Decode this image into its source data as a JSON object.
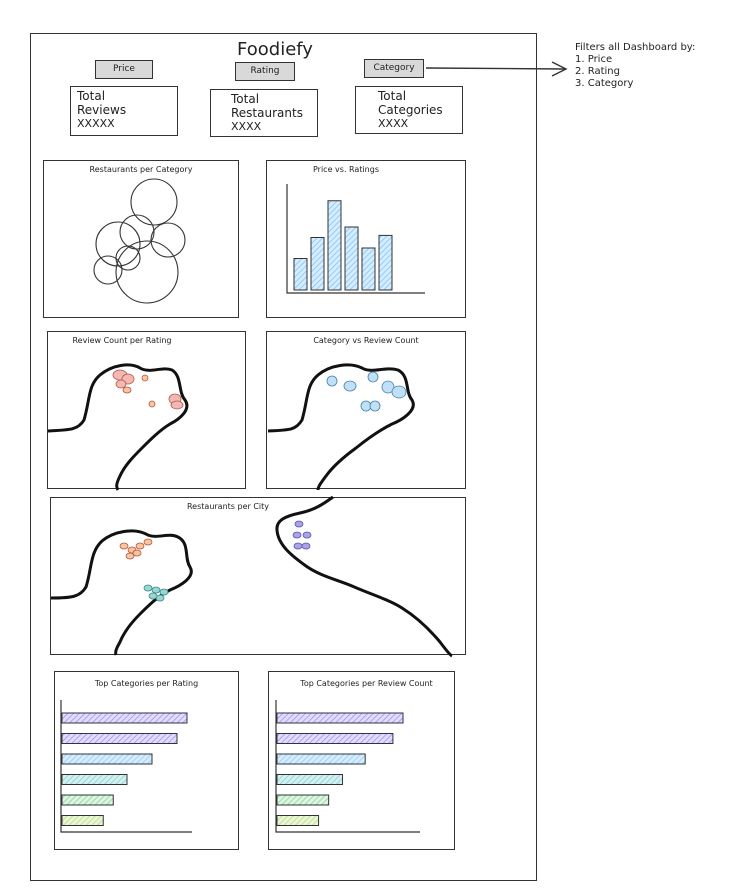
{
  "app_title": "Foodiefy",
  "filters": {
    "price": "Price",
    "rating": "Rating",
    "category": "Category"
  },
  "kpis": {
    "reviews": {
      "line1": "Total",
      "line2": "Reviews",
      "value": "XXXXX"
    },
    "restaurants": {
      "line1": "Total",
      "line2": "Restaurants",
      "value": "XXXX"
    },
    "categories": {
      "line1": "Total",
      "line2": "Categories",
      "value": "XXXX"
    }
  },
  "note": {
    "heading": "Filters all Dashboard by:",
    "items": [
      "1. Price",
      "2. Rating",
      "3. Category"
    ]
  },
  "panels": {
    "restaurants_per_category": "Restaurants per Category",
    "price_vs_ratings": "Price vs. Ratings",
    "review_count_per_rating": "Review Count per Rating",
    "category_vs_review_count": "Category vs Review Count",
    "restaurants_per_city": "Restaurants per City",
    "top_categories_rating": "Top Categories per Rating",
    "top_categories_review": "Top Categories per Review Count"
  },
  "colors": {
    "bar_blue": "#a5d8ff",
    "bar_purple": "#b7a9f5",
    "bar_green": "#a8e0b4",
    "map_red": "#f2b8b5",
    "map_orange": "#f7c59f",
    "map_blue": "#a5d8ff",
    "map_teal": "#9ad7d3",
    "map_purple": "#a8a4e6",
    "ink": "#222222"
  },
  "chart_data": [
    {
      "type": "bar",
      "title": "Price vs. Ratings",
      "values": [
        3,
        5,
        8.5,
        6,
        4,
        5.2
      ]
    },
    {
      "type": "bar",
      "orientation": "horizontal",
      "title": "Top Categories per Rating",
      "values": [
        10,
        9.2,
        7.2,
        5.2,
        4.1,
        3.3
      ]
    },
    {
      "type": "bar",
      "orientation": "horizontal",
      "title": "Top Categories per Review Count",
      "values": [
        10,
        9.2,
        7.0,
        5.2,
        4.1,
        3.3
      ]
    }
  ]
}
